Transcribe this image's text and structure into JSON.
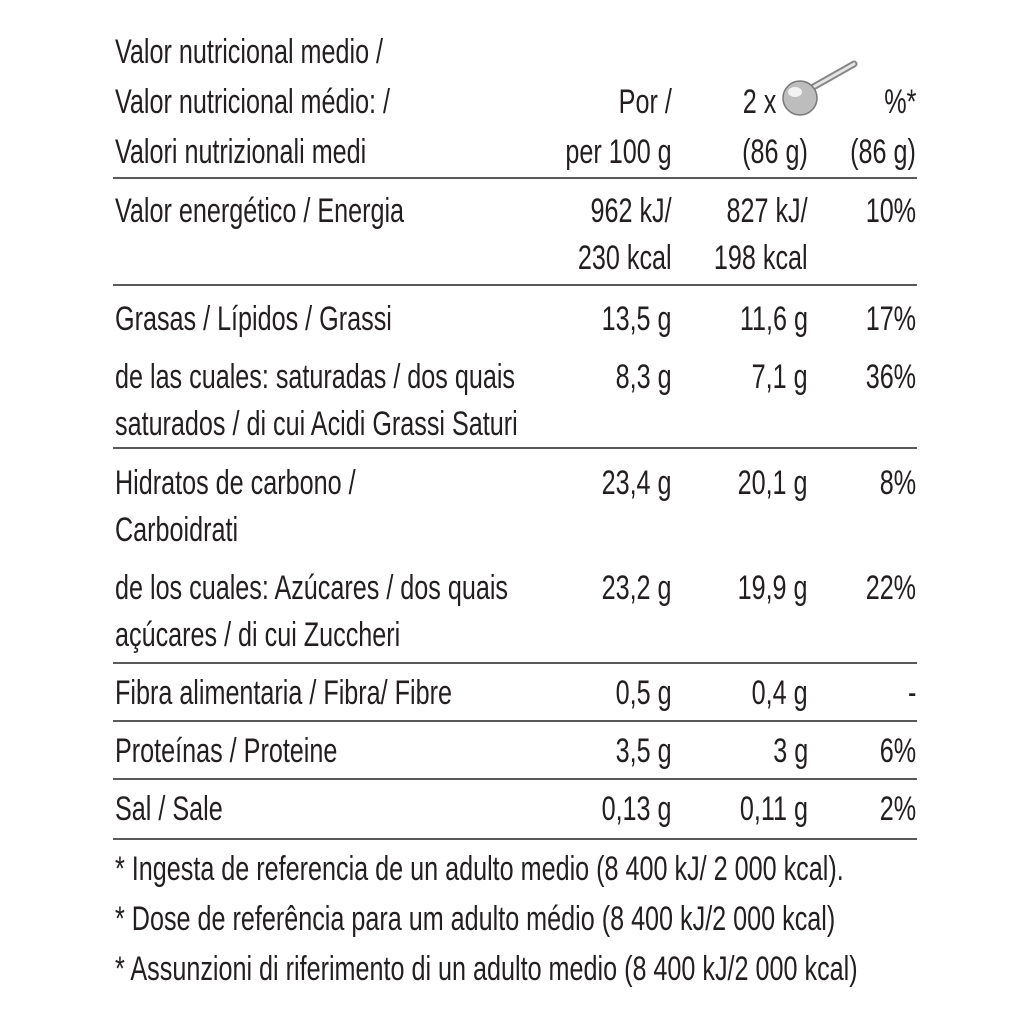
{
  "header": {
    "label": [
      "Valor nutricional medio /",
      "Valor nutricional médio: /",
      "Valori nutrizionali medi"
    ],
    "columns": [
      [
        "Por /",
        "per 100 g"
      ],
      [
        "2 x",
        "(86 g)"
      ],
      [
        "%*",
        "(86 g)"
      ]
    ]
  },
  "rows": [
    {
      "label": [
        "Valor energético / Energia"
      ],
      "values": [
        [
          "962 kJ/",
          "230 kcal"
        ],
        [
          "827 kJ/",
          "198 kcal"
        ],
        [
          "10%"
        ]
      ]
    },
    {
      "label": [
        "Grasas / Lípidos / Grassi"
      ],
      "values": [
        [
          "13,5 g"
        ],
        [
          "11,6 g"
        ],
        [
          "17%"
        ]
      ]
    },
    {
      "label": [
        "de las cuales: saturadas / dos quais",
        "saturados /  di cui Acidi Grassi Saturi"
      ],
      "values": [
        [
          "8,3 g"
        ],
        [
          "7,1 g"
        ],
        [
          "36%"
        ]
      ]
    },
    {
      "label": [
        "Hidratos de carbono /",
        "Carboidrati"
      ],
      "values": [
        [
          "23,4 g"
        ],
        [
          "20,1 g"
        ],
        [
          "8%"
        ]
      ]
    },
    {
      "label": [
        "de los cuales: Azúcares / dos quais",
        "açúcares / di cui Zuccheri"
      ],
      "values": [
        [
          "23,2 g"
        ],
        [
          "19,9 g"
        ],
        [
          "22%"
        ]
      ]
    },
    {
      "label": [
        "Fibra alimentaria / Fibra/ Fibre"
      ],
      "values": [
        [
          "0,5 g"
        ],
        [
          "0,4 g"
        ],
        [
          "-"
        ]
      ]
    },
    {
      "label": [
        "Proteínas / Proteine"
      ],
      "values": [
        [
          "3,5 g"
        ],
        [
          "3 g"
        ],
        [
          "6%"
        ]
      ]
    },
    {
      "label": [
        "Sal / Sale"
      ],
      "values": [
        [
          "0,13 g"
        ],
        [
          "0,11 g"
        ],
        [
          "2%"
        ]
      ]
    }
  ],
  "footnotes": [
    "* Ingesta de referencia de un adulto medio (8 400 kJ/ 2 000 kcal).",
    "* Dose de referência para um adulto médio (8 400 kJ/2 000 kcal)",
    "* Assunzioni di riferimento di un adulto medio (8 400 kJ/2 000 kcal)"
  ]
}
